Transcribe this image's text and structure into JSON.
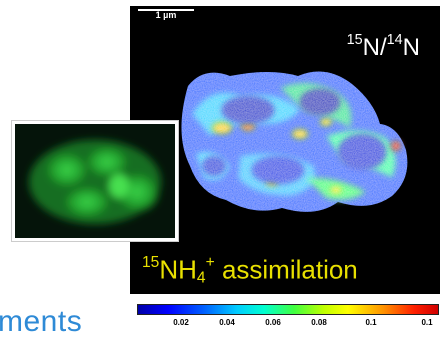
{
  "scale_bar": {
    "label": "1 µm"
  },
  "ratio_title": {
    "sup1": "15",
    "el1": "N/",
    "sup2": "14",
    "el2": "N"
  },
  "assimilation": {
    "sup": "15",
    "base": "NH",
    "sub": "4",
    "charge": "+",
    "text": " assimilation"
  },
  "side_text": "ments",
  "colorbar": {
    "ticks": [
      "0.02",
      "0.04",
      "0.06",
      "0.08",
      "0.1",
      "0.1"
    ]
  },
  "colors": {
    "accent_text": "#e8e000",
    "side_text": "#2e8ad6"
  }
}
